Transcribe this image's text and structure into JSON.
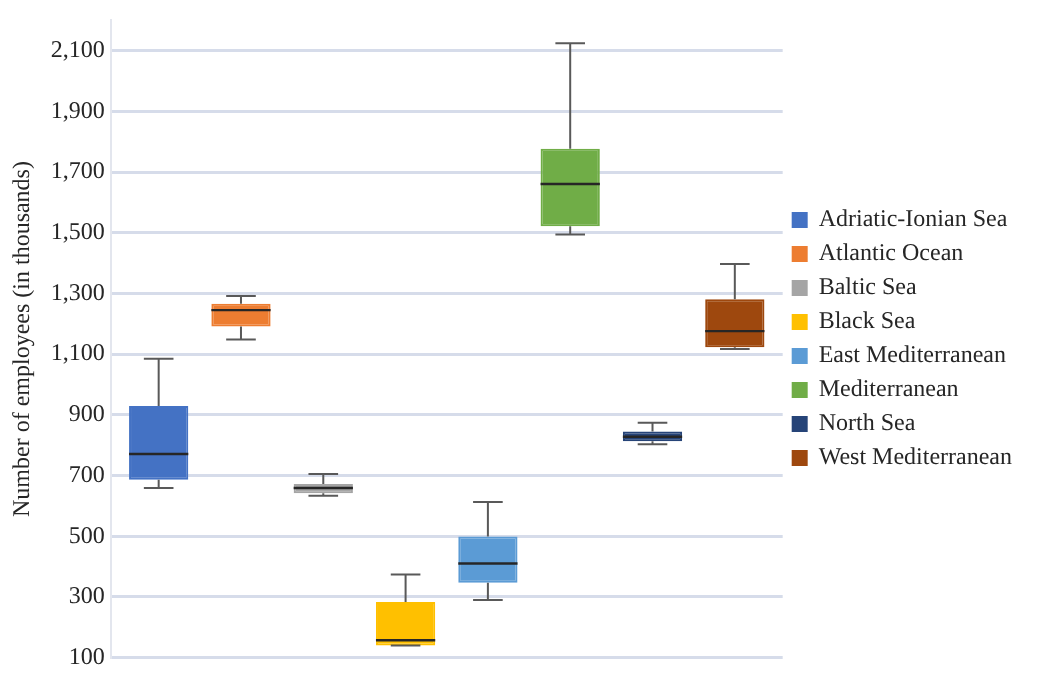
{
  "chart_data": {
    "type": "box",
    "ylabel": "Number of employees (in thousands)",
    "categories": [
      null
    ],
    "ylim": [
      100,
      2200
    ],
    "yticks": [
      100,
      300,
      500,
      700,
      900,
      {
        "value": 1100,
        "label": "1,100"
      },
      {
        "value": 1300,
        "label": "1,300"
      },
      {
        "value": 1500,
        "label": "1,500"
      },
      {
        "value": 1700,
        "label": "1,700"
      },
      {
        "value": 1900,
        "label": "1,900"
      },
      {
        "value": 2100,
        "label": "2,100"
      }
    ],
    "grid": "y",
    "legend": "right",
    "series": [
      {
        "name": "Adriatic-Ionian Sea",
        "color": "#4472c4",
        "boxes": [
          {
            "low": 659,
            "q1": 686,
            "median": 771,
            "q3": 929,
            "high": 1085
          }
        ]
      },
      {
        "name": "Atlantic Ocean",
        "color": "#ed7d31",
        "boxes": [
          {
            "low": 1148,
            "q1": 1191,
            "median": 1245,
            "q3": 1266,
            "high": 1292
          }
        ]
      },
      {
        "name": "Baltic Sea",
        "color": "#a5a5a5",
        "boxes": [
          {
            "low": 633,
            "q1": 642,
            "median": 659,
            "q3": 672,
            "high": 705
          }
        ]
      },
      {
        "name": "Black Sea",
        "color": "#ffc000",
        "boxes": [
          {
            "low": 140,
            "q1": 140,
            "median": 157,
            "q3": 283,
            "high": 374
          }
        ]
      },
      {
        "name": "East Mediterranean",
        "color": "#5b9bd5",
        "boxes": [
          {
            "low": 290,
            "q1": 347,
            "median": 410,
            "q3": 499,
            "high": 613
          }
        ]
      },
      {
        "name": "Mediterranean",
        "color": "#70ad47",
        "boxes": [
          {
            "low": 1494,
            "q1": 1522,
            "median": 1661,
            "q3": 1777,
            "high": 2125
          }
        ]
      },
      {
        "name": "North Sea",
        "color": "#264478",
        "boxes": [
          {
            "low": 803,
            "q1": 813,
            "median": 828,
            "q3": 845,
            "high": 874
          }
        ]
      },
      {
        "name": "West Mediterranean",
        "color": "#9e480e",
        "boxes": [
          {
            "low": 1117,
            "q1": 1123,
            "median": 1176,
            "q3": 1281,
            "high": 1397
          }
        ]
      }
    ]
  }
}
